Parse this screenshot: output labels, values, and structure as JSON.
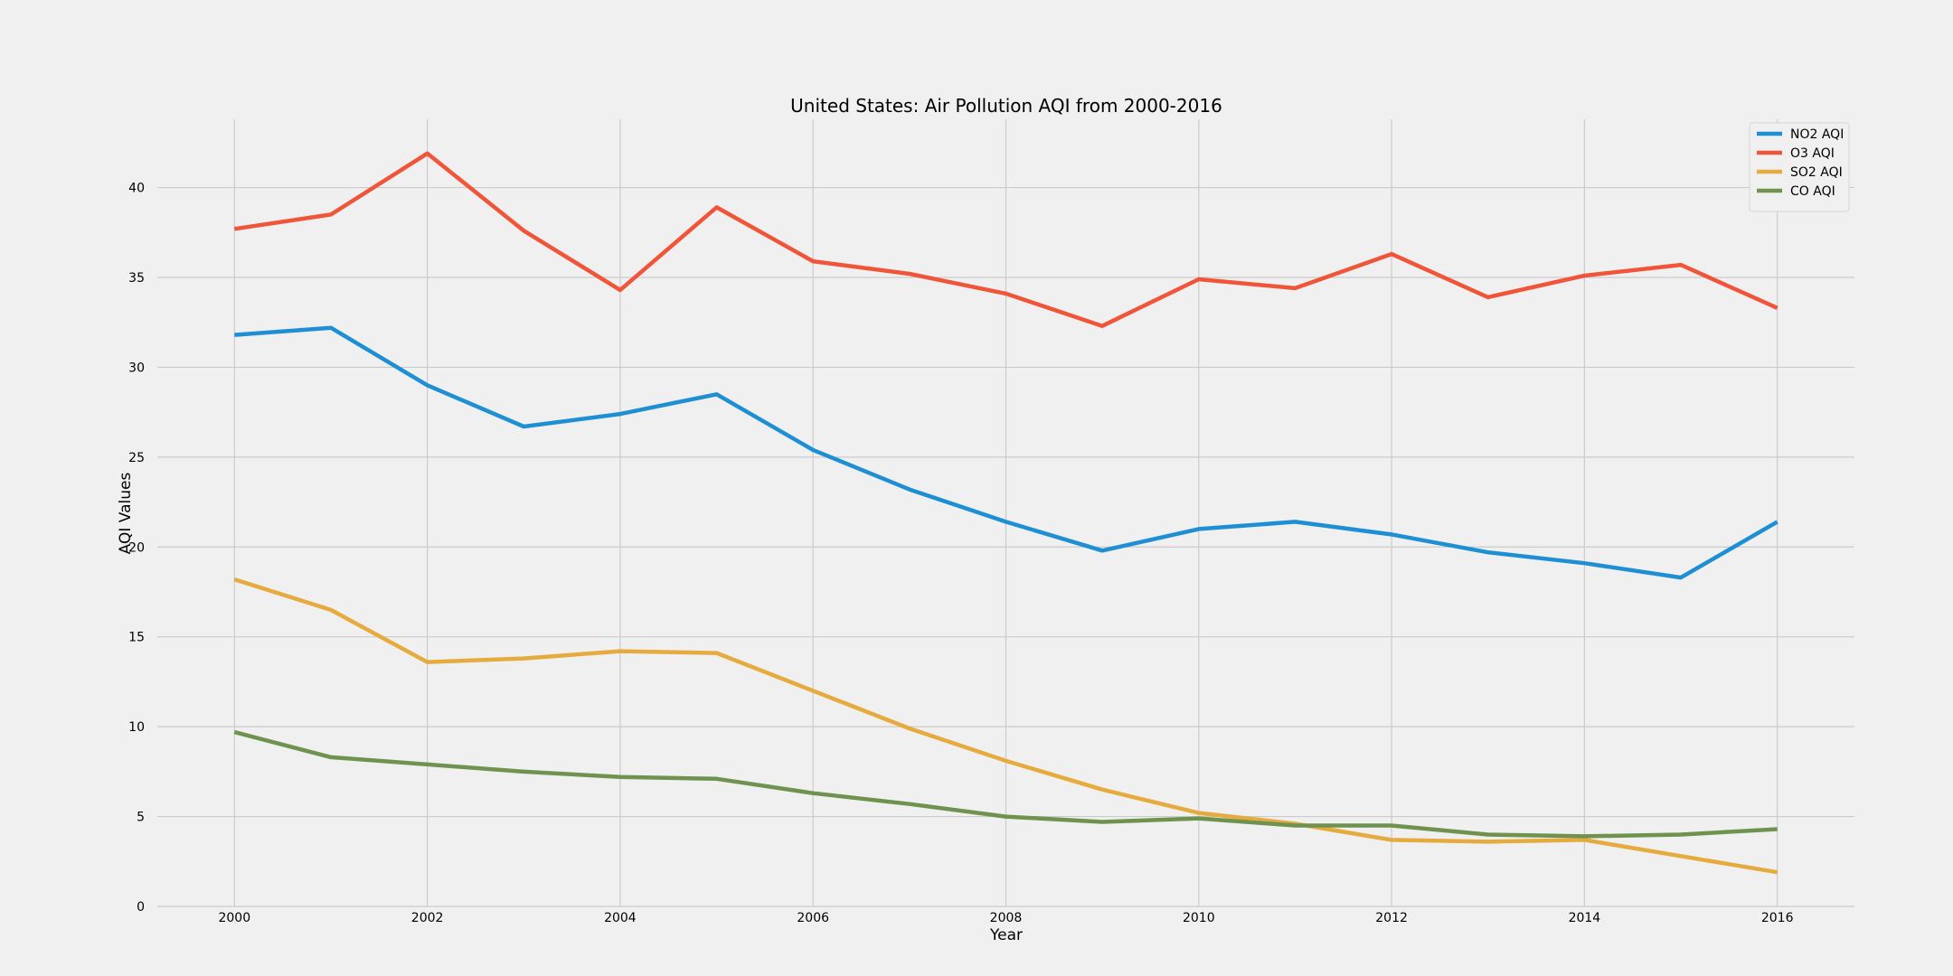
{
  "chart_data": {
    "type": "line",
    "title": "United States: Air Pollution AQI from 2000-2016",
    "xlabel": "Year",
    "ylabel": "AQI Values",
    "x": [
      2000,
      2001,
      2002,
      2003,
      2004,
      2005,
      2006,
      2007,
      2008,
      2009,
      2010,
      2011,
      2012,
      2013,
      2014,
      2015,
      2016
    ],
    "xlim": [
      1999.2,
      2016.8
    ],
    "ylim": [
      0,
      43.8
    ],
    "xticks": [
      2000,
      2002,
      2004,
      2006,
      2008,
      2010,
      2012,
      2014,
      2016
    ],
    "yticks": [
      0,
      5,
      10,
      15,
      20,
      25,
      30,
      35,
      40
    ],
    "grid": true,
    "legend_position": "top-right",
    "series": [
      {
        "name": "NO2 AQI",
        "color": "#1f8fd4",
        "values": [
          31.8,
          32.2,
          29.0,
          26.7,
          27.4,
          28.5,
          25.4,
          23.2,
          21.4,
          19.8,
          21.0,
          21.4,
          20.7,
          19.7,
          19.1,
          18.3,
          21.4
        ]
      },
      {
        "name": "O3 AQI",
        "color": "#f0553a",
        "values": [
          37.7,
          38.5,
          41.9,
          37.6,
          34.3,
          38.9,
          35.9,
          35.2,
          34.1,
          32.3,
          34.9,
          34.4,
          36.3,
          33.9,
          35.1,
          35.7,
          33.3
        ]
      },
      {
        "name": "SO2 AQI",
        "color": "#e6ab3e",
        "values": [
          18.2,
          16.5,
          13.6,
          13.8,
          14.2,
          14.1,
          12.0,
          9.9,
          8.1,
          6.5,
          5.2,
          4.6,
          3.7,
          3.6,
          3.7,
          2.8,
          1.9
        ]
      },
      {
        "name": "CO AQI",
        "color": "#6f934f",
        "values": [
          9.7,
          8.3,
          7.9,
          7.5,
          7.2,
          7.1,
          6.3,
          5.7,
          5.0,
          4.7,
          4.9,
          4.5,
          4.5,
          4.0,
          3.9,
          4.0,
          4.3
        ]
      }
    ]
  }
}
